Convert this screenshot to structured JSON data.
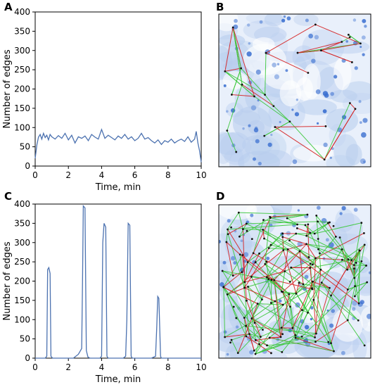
{
  "panels": {
    "A": "A",
    "B": "B",
    "C": "C",
    "D": "D"
  },
  "colors": {
    "line": "#4c72b0",
    "edge_green": "#3cc83c",
    "edge_red": "#d62020",
    "node": "#111111",
    "cell_blue": "#3a6fd0"
  },
  "chart_data": [
    {
      "panel": "A",
      "type": "line",
      "xlabel": "Time, min",
      "ylabel": "Number of edges",
      "xlim": [
        0,
        10
      ],
      "ylim": [
        0,
        400
      ],
      "xticks": [
        0,
        2,
        4,
        6,
        8,
        10
      ],
      "yticks": [
        0,
        50,
        100,
        150,
        200,
        250,
        300,
        350,
        400
      ],
      "x": [
        0,
        0.1,
        0.2,
        0.3,
        0.4,
        0.5,
        0.6,
        0.7,
        0.8,
        0.9,
        1.0,
        1.2,
        1.4,
        1.6,
        1.8,
        2.0,
        2.2,
        2.4,
        2.6,
        2.8,
        3.0,
        3.2,
        3.4,
        3.6,
        3.8,
        4.0,
        4.2,
        4.4,
        4.6,
        4.8,
        5.0,
        5.2,
        5.4,
        5.6,
        5.8,
        6.0,
        6.2,
        6.4,
        6.6,
        6.8,
        7.0,
        7.2,
        7.4,
        7.6,
        7.8,
        8.0,
        8.2,
        8.4,
        8.6,
        8.8,
        9.0,
        9.2,
        9.4,
        9.6,
        9.7,
        9.8,
        9.9,
        10.0
      ],
      "y": [
        20,
        55,
        75,
        82,
        70,
        85,
        74,
        80,
        68,
        82,
        76,
        70,
        79,
        72,
        85,
        68,
        80,
        60,
        76,
        72,
        78,
        66,
        82,
        75,
        70,
        95,
        72,
        80,
        74,
        68,
        78,
        72,
        82,
        70,
        76,
        66,
        72,
        85,
        70,
        74,
        66,
        60,
        68,
        56,
        66,
        62,
        70,
        60,
        66,
        70,
        64,
        76,
        62,
        70,
        90,
        60,
        40,
        10
      ]
    },
    {
      "panel": "C",
      "type": "line",
      "xlabel": "Time, min",
      "ylabel": "Number of edges",
      "xlim": [
        0,
        10
      ],
      "ylim": [
        0,
        400
      ],
      "xticks": [
        0,
        2,
        4,
        6,
        8,
        10
      ],
      "yticks": [
        0,
        50,
        100,
        150,
        200,
        250,
        300,
        350,
        400
      ],
      "x": [
        0,
        0.6,
        0.7,
        0.75,
        0.82,
        0.9,
        0.95,
        1.05,
        2.3,
        2.6,
        2.8,
        2.85,
        2.9,
        3.0,
        3.08,
        3.18,
        3.3,
        3.9,
        4.0,
        4.07,
        4.15,
        4.25,
        4.32,
        4.4,
        5.3,
        5.45,
        5.52,
        5.6,
        5.7,
        5.78,
        5.85,
        7.0,
        7.25,
        7.32,
        7.38,
        7.45,
        7.55,
        7.6,
        10.0
      ],
      "y": [
        0,
        0,
        5,
        230,
        235,
        220,
        5,
        0,
        0,
        10,
        25,
        200,
        395,
        390,
        20,
        3,
        0,
        0,
        5,
        300,
        350,
        340,
        5,
        0,
        0,
        5,
        100,
        350,
        345,
        5,
        0,
        0,
        5,
        80,
        160,
        155,
        5,
        0,
        0
      ]
    }
  ]
}
